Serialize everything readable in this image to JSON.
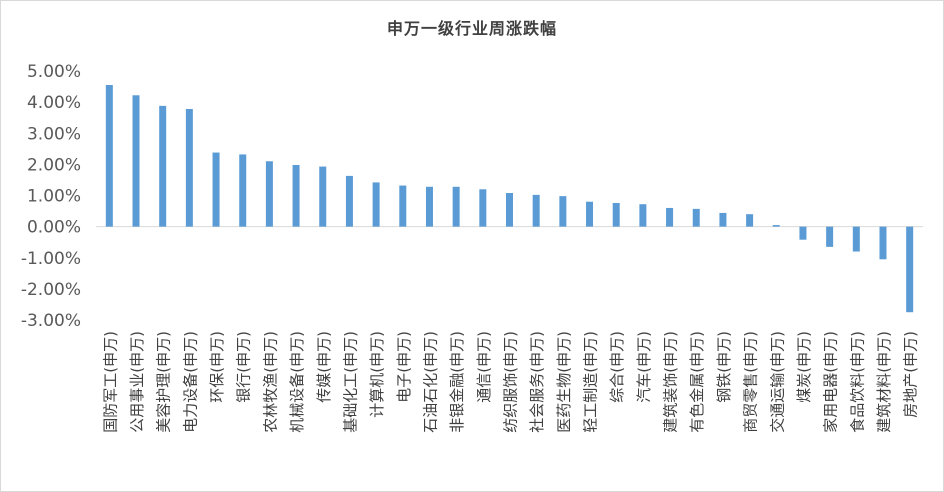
{
  "chart_data": {
    "type": "bar",
    "title": "申万一级行业周涨跌幅",
    "xlabel": "",
    "ylabel": "",
    "ylim": [
      -3,
      5
    ],
    "yticks": [
      "5.00%",
      "4.00%",
      "3.00%",
      "2.00%",
      "1.00%",
      "0.00%",
      "-1.00%",
      "-2.00%",
      "-3.00%"
    ],
    "ytick_values": [
      5,
      4,
      3,
      2,
      1,
      0,
      -1,
      -2,
      -3
    ],
    "grid": false,
    "legend": "none",
    "bar_color": "#5b9bd5",
    "categories": [
      "国防军工(申万)",
      "公用事业(申万)",
      "美容护理(申万)",
      "电力设备(申万)",
      "环保(申万)",
      "银行(申万)",
      "农林牧渔(申万)",
      "机械设备(申万)",
      "传媒(申万)",
      "基础化工(申万)",
      "计算机(申万)",
      "电子(申万)",
      "石油石化(申万)",
      "非银金融(申万)",
      "通信(申万)",
      "纺织服饰(申万)",
      "社会服务(申万)",
      "医药生物(申万)",
      "轻工制造(申万)",
      "综合(申万)",
      "汽车(申万)",
      "建筑装饰(申万)",
      "有色金属(申万)",
      "钢铁(申万)",
      "商贸零售(申万)",
      "交通运输(申万)",
      "煤炭(申万)",
      "家用电器(申万)",
      "食品饮料(申万)",
      "建筑材料(申万)",
      "房地产(申万)"
    ],
    "values": [
      4.55,
      4.22,
      3.88,
      3.78,
      2.38,
      2.32,
      2.1,
      1.98,
      1.93,
      1.63,
      1.42,
      1.32,
      1.28,
      1.28,
      1.2,
      1.08,
      1.02,
      0.98,
      0.8,
      0.76,
      0.72,
      0.6,
      0.57,
      0.44,
      0.4,
      0.05,
      -0.42,
      -0.65,
      -0.8,
      -1.05,
      -2.75
    ]
  }
}
